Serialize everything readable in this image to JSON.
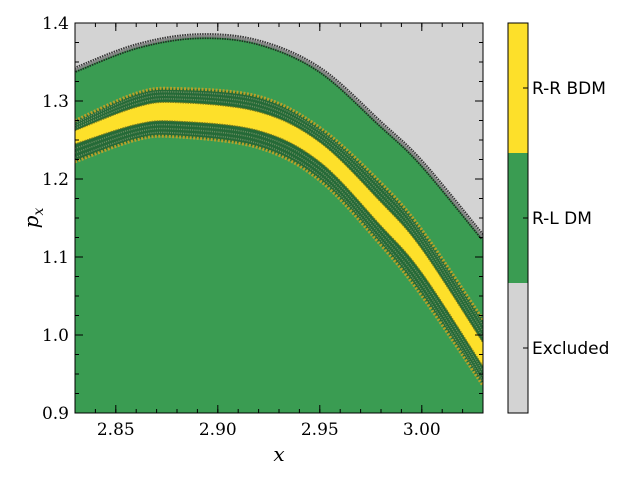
{
  "chart_data": {
    "type": "heatmap",
    "title": "",
    "xlabel": "x",
    "ylabel_main": "p",
    "ylabel_sub": "x",
    "xlim": [
      2.83,
      3.03
    ],
    "ylim": [
      0.9,
      1.4
    ],
    "xticks": [
      2.85,
      2.9,
      2.95,
      3.0
    ],
    "xtick_labels": [
      "2.85",
      "2.90",
      "2.95",
      "3.00"
    ],
    "yticks": [
      0.9,
      1.0,
      1.1,
      1.2,
      1.3,
      1.4
    ],
    "ytick_labels": [
      "0.9",
      "1.0",
      "1.1",
      "1.2",
      "1.3",
      "1.4"
    ],
    "grid": false,
    "regions": [
      {
        "name": "Excluded",
        "color": "#d3d3d3"
      },
      {
        "name": "R-L DM",
        "color": "#3a9c52"
      },
      {
        "name": "R-R BDM",
        "color": "#fde02a"
      }
    ],
    "boundaries": {
      "excluded": {
        "x": [
          2.83,
          2.86,
          2.89,
          2.92,
          2.95,
          2.98,
          3.0,
          3.03
        ],
        "p": [
          1.34,
          1.37,
          1.383,
          1.375,
          1.34,
          1.27,
          1.22,
          1.125
        ]
      },
      "band_outer_upper": {
        "x": [
          2.83,
          2.86,
          2.88,
          2.92,
          2.95,
          2.98,
          3.0,
          3.03
        ],
        "p": [
          1.275,
          1.31,
          1.316,
          1.306,
          1.266,
          1.195,
          1.135,
          1.02
        ]
      },
      "yellow_upper": {
        "x": [
          2.83,
          2.86,
          2.88,
          2.92,
          2.95,
          2.98,
          3.0,
          3.03
        ],
        "p": [
          1.262,
          1.292,
          1.298,
          1.286,
          1.247,
          1.17,
          1.11,
          0.99
        ]
      },
      "yellow_lower": {
        "x": [
          2.83,
          2.86,
          2.88,
          2.92,
          2.95,
          2.98,
          3.0,
          3.03
        ],
        "p": [
          1.245,
          1.27,
          1.274,
          1.262,
          1.222,
          1.14,
          1.08,
          0.96
        ]
      },
      "band_outer_lower": {
        "x": [
          2.83,
          2.86,
          2.88,
          2.92,
          2.95,
          2.98,
          3.0,
          3.03
        ],
        "p": [
          1.222,
          1.25,
          1.254,
          1.24,
          1.198,
          1.115,
          1.05,
          0.935
        ]
      }
    },
    "colorbar": {
      "labels": [
        "Excluded",
        "R-L DM",
        "R-R BDM"
      ]
    }
  }
}
